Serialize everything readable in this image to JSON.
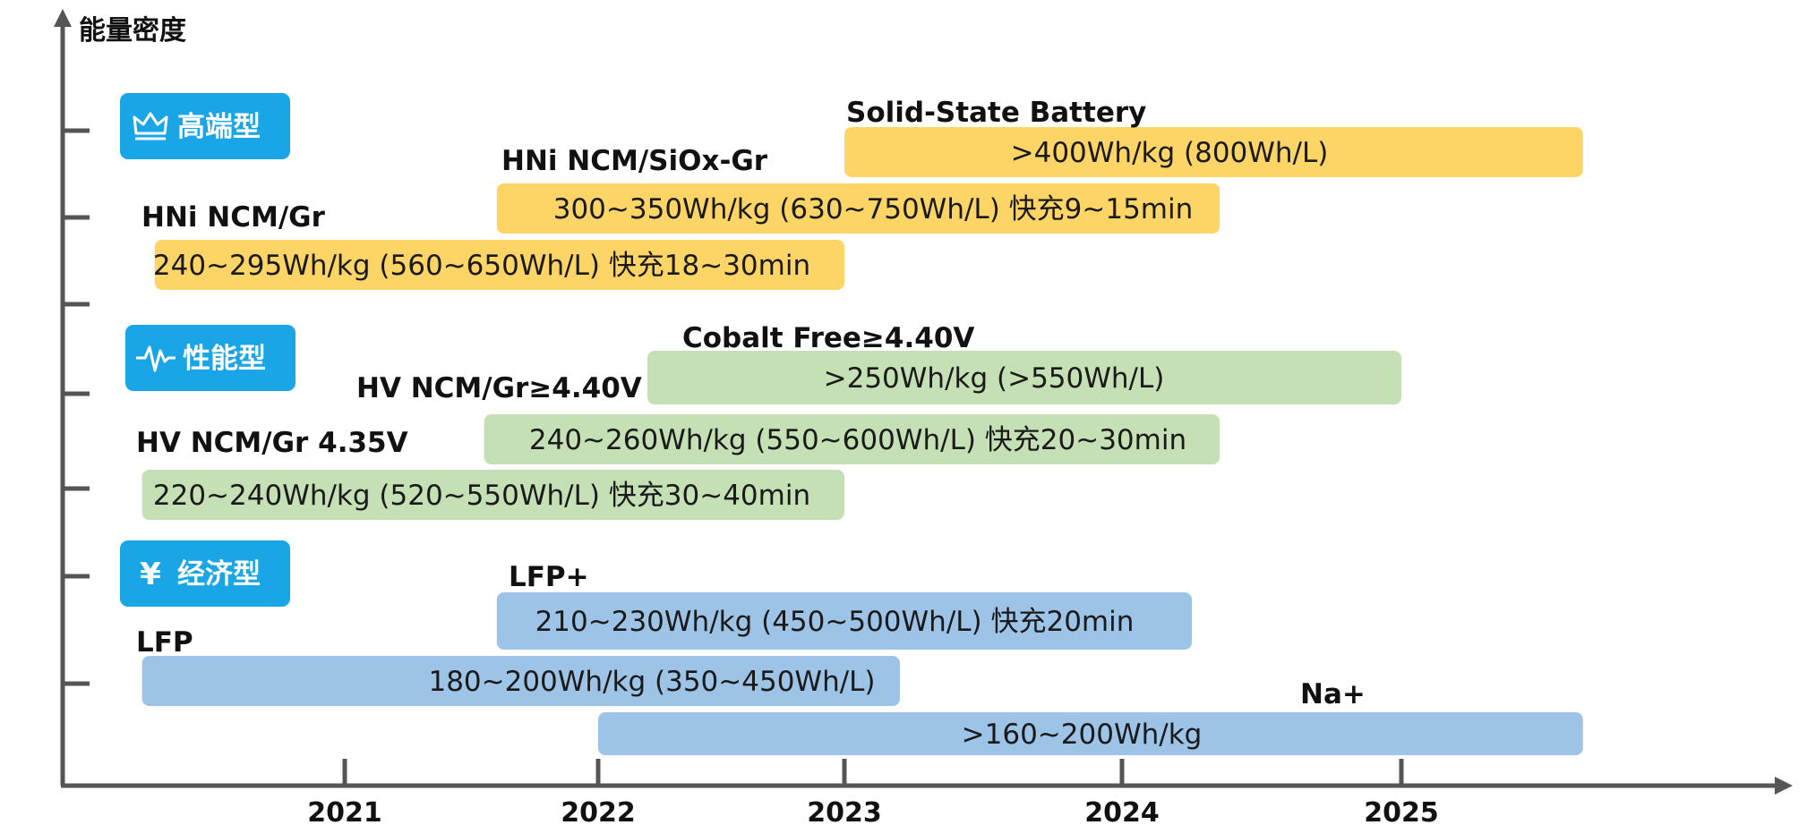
{
  "chart_data": {
    "type": "bar",
    "orientation": "horizontal-range",
    "title": "",
    "ylabel": "能量密度",
    "xlabel": "",
    "x_ticks": [
      "2021",
      "2022",
      "2023",
      "2024",
      "2025"
    ],
    "x_range": [
      2019.9,
      2026.4
    ],
    "categories": [
      {
        "label": "高端型",
        "icon": "crown-icon",
        "color": "#1aa6e6"
      },
      {
        "label": "性能型",
        "icon": "pulse-icon",
        "color": "#1aa6e6"
      },
      {
        "label": "经济型",
        "icon": "yen-icon",
        "color": "#1aa6e6"
      }
    ],
    "series": [
      {
        "tier": "高端型",
        "name": "Solid-State Battery",
        "text": ">400Wh/kg (800Wh/L)",
        "start": 2023.0,
        "end": 2025.65,
        "color": "#fdd567"
      },
      {
        "tier": "高端型",
        "name": "HNi NCM/SiOx-Gr",
        "text": "300~350Wh/kg (630~750Wh/L) 快充9~15min",
        "start": 2021.6,
        "end": 2024.35,
        "color": "#fdd567"
      },
      {
        "tier": "高端型",
        "name": "HNi NCM/Gr",
        "text": "240~295Wh/kg (560~650Wh/L) 快充18~30min",
        "start": 2020.25,
        "end": 2023.0,
        "color": "#fdd567"
      },
      {
        "tier": "性能型",
        "name": "Cobalt Free≥4.40V",
        "text": ">250Wh/kg (>550Wh/L)",
        "start": 2022.2,
        "end": 2025.0,
        "color": "#c5e0b4"
      },
      {
        "tier": "性能型",
        "name": "HV NCM/Gr≥4.40V",
        "text": "240~260Wh/kg (550~600Wh/L) 快充20~30min",
        "start": 2021.55,
        "end": 2024.35,
        "color": "#c5e0b4"
      },
      {
        "tier": "性能型",
        "name": "HV NCM/Gr 4.35V",
        "text": "220~240Wh/kg (520~550Wh/L) 快充30~40min",
        "start": 2020.2,
        "end": 2023.0,
        "color": "#c5e0b4"
      },
      {
        "tier": "经济型",
        "name": "LFP+",
        "text": "210~230Wh/kg (450~500Wh/L) 快充20min",
        "start": 2021.6,
        "end": 2024.25,
        "color": "#9dc3e6"
      },
      {
        "tier": "经济型",
        "name": "LFP",
        "text": "180~200Wh/kg (350~450Wh/L)",
        "start": 2020.2,
        "end": 2023.2,
        "color": "#9dc3e6"
      },
      {
        "tier": "经济型",
        "name": "Na+",
        "text": ">160~200Wh/kg",
        "start": 2022.0,
        "end": 2025.65,
        "color": "#9dc3e6"
      }
    ]
  }
}
